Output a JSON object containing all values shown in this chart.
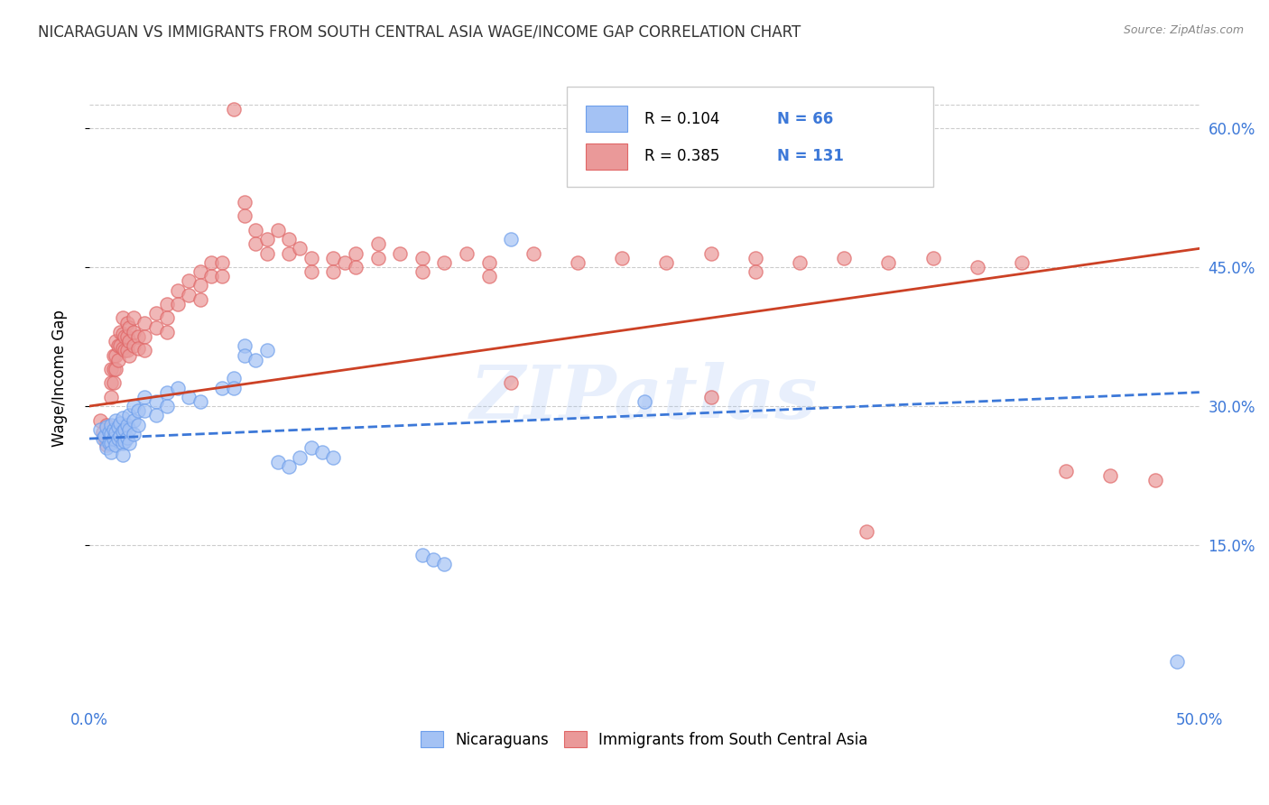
{
  "title": "NICARAGUAN VS IMMIGRANTS FROM SOUTH CENTRAL ASIA WAGE/INCOME GAP CORRELATION CHART",
  "source": "Source: ZipAtlas.com",
  "ylabel": "Wage/Income Gap",
  "xlim": [
    0.0,
    0.5
  ],
  "ylim": [
    -0.02,
    0.68
  ],
  "ytick_positions": [
    0.15,
    0.3,
    0.45,
    0.6
  ],
  "ytick_labels": [
    "15.0%",
    "30.0%",
    "45.0%",
    "60.0%"
  ],
  "blue_color": "#a4c2f4",
  "blue_edge_color": "#6d9eeb",
  "pink_color": "#ea9999",
  "pink_edge_color": "#e06666",
  "blue_line_color": "#3c78d8",
  "pink_line_color": "#cc4125",
  "legend_R_blue": "0.104",
  "legend_N_blue": "66",
  "legend_R_pink": "0.385",
  "legend_N_pink": "131",
  "watermark": "ZIPatlas",
  "blue_trend": [
    0.0,
    0.265,
    0.5,
    0.315
  ],
  "pink_trend": [
    0.0,
    0.3,
    0.5,
    0.47
  ],
  "blue_scatter": [
    [
      0.005,
      0.275
    ],
    [
      0.006,
      0.265
    ],
    [
      0.007,
      0.268
    ],
    [
      0.008,
      0.278
    ],
    [
      0.008,
      0.255
    ],
    [
      0.009,
      0.272
    ],
    [
      0.009,
      0.26
    ],
    [
      0.01,
      0.28
    ],
    [
      0.01,
      0.27
    ],
    [
      0.01,
      0.26
    ],
    [
      0.01,
      0.25
    ],
    [
      0.011,
      0.275
    ],
    [
      0.011,
      0.265
    ],
    [
      0.012,
      0.285
    ],
    [
      0.012,
      0.272
    ],
    [
      0.012,
      0.258
    ],
    [
      0.013,
      0.278
    ],
    [
      0.013,
      0.265
    ],
    [
      0.014,
      0.282
    ],
    [
      0.014,
      0.268
    ],
    [
      0.015,
      0.287
    ],
    [
      0.015,
      0.273
    ],
    [
      0.015,
      0.26
    ],
    [
      0.015,
      0.248
    ],
    [
      0.016,
      0.275
    ],
    [
      0.016,
      0.262
    ],
    [
      0.017,
      0.28
    ],
    [
      0.017,
      0.266
    ],
    [
      0.018,
      0.29
    ],
    [
      0.018,
      0.275
    ],
    [
      0.018,
      0.26
    ],
    [
      0.02,
      0.3
    ],
    [
      0.02,
      0.285
    ],
    [
      0.02,
      0.27
    ],
    [
      0.022,
      0.295
    ],
    [
      0.022,
      0.28
    ],
    [
      0.025,
      0.31
    ],
    [
      0.025,
      0.295
    ],
    [
      0.03,
      0.305
    ],
    [
      0.03,
      0.29
    ],
    [
      0.035,
      0.315
    ],
    [
      0.035,
      0.3
    ],
    [
      0.04,
      0.32
    ],
    [
      0.045,
      0.31
    ],
    [
      0.05,
      0.305
    ],
    [
      0.06,
      0.32
    ],
    [
      0.065,
      0.33
    ],
    [
      0.065,
      0.32
    ],
    [
      0.07,
      0.365
    ],
    [
      0.07,
      0.355
    ],
    [
      0.075,
      0.35
    ],
    [
      0.08,
      0.36
    ],
    [
      0.085,
      0.24
    ],
    [
      0.09,
      0.235
    ],
    [
      0.095,
      0.245
    ],
    [
      0.1,
      0.255
    ],
    [
      0.105,
      0.25
    ],
    [
      0.11,
      0.245
    ],
    [
      0.15,
      0.14
    ],
    [
      0.155,
      0.135
    ],
    [
      0.16,
      0.13
    ],
    [
      0.19,
      0.48
    ],
    [
      0.25,
      0.305
    ],
    [
      0.49,
      0.025
    ]
  ],
  "pink_scatter": [
    [
      0.005,
      0.285
    ],
    [
      0.006,
      0.272
    ],
    [
      0.007,
      0.265
    ],
    [
      0.008,
      0.28
    ],
    [
      0.008,
      0.268
    ],
    [
      0.008,
      0.258
    ],
    [
      0.009,
      0.275
    ],
    [
      0.009,
      0.262
    ],
    [
      0.01,
      0.34
    ],
    [
      0.01,
      0.325
    ],
    [
      0.01,
      0.31
    ],
    [
      0.011,
      0.355
    ],
    [
      0.011,
      0.34
    ],
    [
      0.011,
      0.325
    ],
    [
      0.012,
      0.37
    ],
    [
      0.012,
      0.355
    ],
    [
      0.012,
      0.34
    ],
    [
      0.013,
      0.365
    ],
    [
      0.013,
      0.35
    ],
    [
      0.014,
      0.38
    ],
    [
      0.014,
      0.365
    ],
    [
      0.015,
      0.395
    ],
    [
      0.015,
      0.378
    ],
    [
      0.015,
      0.362
    ],
    [
      0.016,
      0.375
    ],
    [
      0.016,
      0.36
    ],
    [
      0.017,
      0.39
    ],
    [
      0.017,
      0.375
    ],
    [
      0.017,
      0.36
    ],
    [
      0.018,
      0.385
    ],
    [
      0.018,
      0.37
    ],
    [
      0.018,
      0.355
    ],
    [
      0.02,
      0.395
    ],
    [
      0.02,
      0.38
    ],
    [
      0.02,
      0.365
    ],
    [
      0.022,
      0.375
    ],
    [
      0.022,
      0.362
    ],
    [
      0.025,
      0.39
    ],
    [
      0.025,
      0.375
    ],
    [
      0.025,
      0.36
    ],
    [
      0.03,
      0.4
    ],
    [
      0.03,
      0.385
    ],
    [
      0.035,
      0.41
    ],
    [
      0.035,
      0.395
    ],
    [
      0.035,
      0.38
    ],
    [
      0.04,
      0.425
    ],
    [
      0.04,
      0.41
    ],
    [
      0.045,
      0.435
    ],
    [
      0.045,
      0.42
    ],
    [
      0.05,
      0.445
    ],
    [
      0.05,
      0.43
    ],
    [
      0.05,
      0.415
    ],
    [
      0.055,
      0.455
    ],
    [
      0.055,
      0.44
    ],
    [
      0.06,
      0.455
    ],
    [
      0.06,
      0.44
    ],
    [
      0.065,
      0.62
    ],
    [
      0.07,
      0.52
    ],
    [
      0.07,
      0.505
    ],
    [
      0.075,
      0.49
    ],
    [
      0.075,
      0.475
    ],
    [
      0.08,
      0.48
    ],
    [
      0.08,
      0.465
    ],
    [
      0.085,
      0.49
    ],
    [
      0.09,
      0.48
    ],
    [
      0.09,
      0.465
    ],
    [
      0.095,
      0.47
    ],
    [
      0.1,
      0.46
    ],
    [
      0.1,
      0.445
    ],
    [
      0.11,
      0.46
    ],
    [
      0.11,
      0.445
    ],
    [
      0.115,
      0.455
    ],
    [
      0.12,
      0.465
    ],
    [
      0.12,
      0.45
    ],
    [
      0.13,
      0.475
    ],
    [
      0.13,
      0.46
    ],
    [
      0.14,
      0.465
    ],
    [
      0.15,
      0.46
    ],
    [
      0.15,
      0.445
    ],
    [
      0.16,
      0.455
    ],
    [
      0.17,
      0.465
    ],
    [
      0.18,
      0.455
    ],
    [
      0.18,
      0.44
    ],
    [
      0.2,
      0.465
    ],
    [
      0.22,
      0.455
    ],
    [
      0.24,
      0.46
    ],
    [
      0.26,
      0.455
    ],
    [
      0.28,
      0.465
    ],
    [
      0.3,
      0.46
    ],
    [
      0.3,
      0.445
    ],
    [
      0.32,
      0.455
    ],
    [
      0.34,
      0.46
    ],
    [
      0.36,
      0.455
    ],
    [
      0.38,
      0.46
    ],
    [
      0.4,
      0.45
    ],
    [
      0.42,
      0.455
    ],
    [
      0.44,
      0.23
    ],
    [
      0.46,
      0.225
    ],
    [
      0.48,
      0.22
    ],
    [
      0.35,
      0.165
    ],
    [
      0.28,
      0.31
    ],
    [
      0.19,
      0.325
    ]
  ]
}
